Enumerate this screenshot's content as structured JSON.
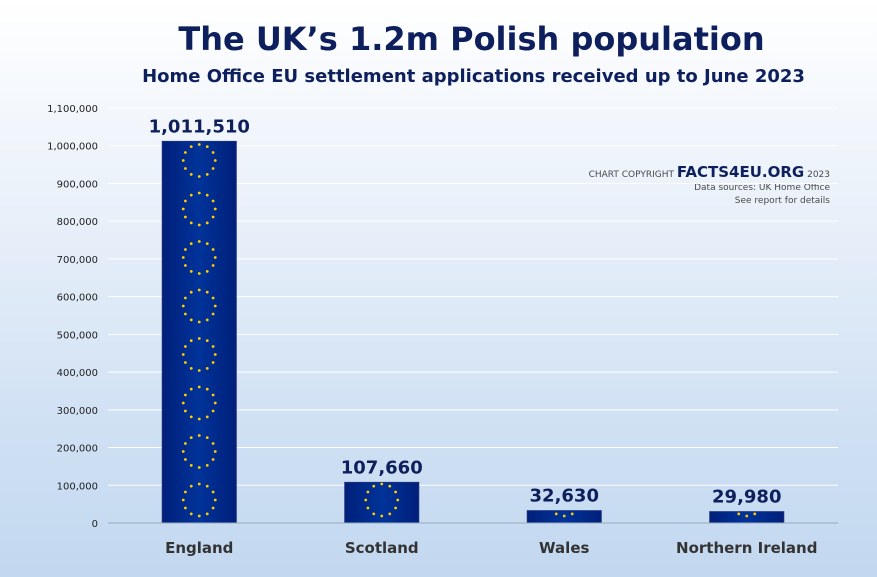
{
  "chart_data": {
    "type": "bar",
    "title": "The UK’s 1.2m Polish population",
    "subtitle": "Home Office EU settlement applications received up to June 2023",
    "categories": [
      "England",
      "Scotland",
      "Wales",
      "Northern Ireland"
    ],
    "values": [
      1011510,
      107660,
      32630,
      29980
    ],
    "data_labels": [
      "1,011,510",
      "107,660",
      "32,630",
      "29,980"
    ],
    "ylim": [
      0,
      1100000
    ],
    "yticks": [
      0,
      100000,
      200000,
      300000,
      400000,
      500000,
      600000,
      700000,
      800000,
      900000,
      1000000,
      1100000
    ],
    "ytick_labels": [
      "0",
      "100,000",
      "200,000",
      "300,000",
      "400,000",
      "500,000",
      "600,000",
      "700,000",
      "800,000",
      "900,000",
      "1,000,000",
      "1,100,000"
    ],
    "grid": true,
    "bar_color": "#003399",
    "star_color": "#ffcc00"
  },
  "copyright": {
    "prefix": "CHART COPYRIGHT ",
    "brand": "FACTS4EU.ORG",
    "year": " 2023",
    "source": "Data sources: UK Home Office",
    "details": "See report for details"
  }
}
